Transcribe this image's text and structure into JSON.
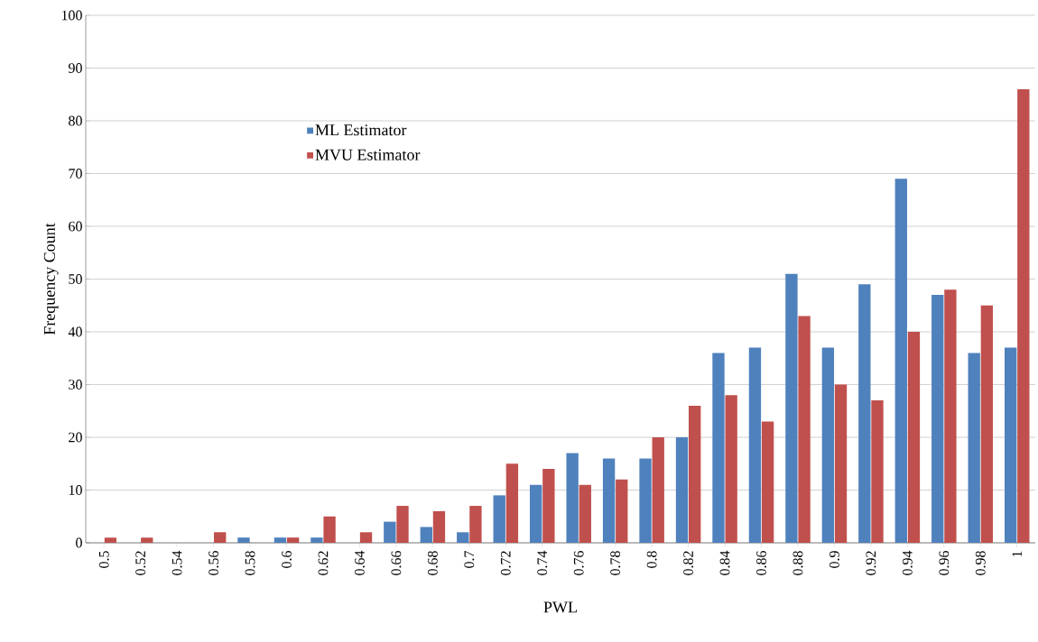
{
  "chart_data": {
    "type": "bar",
    "xlabel": "PWL",
    "ylabel": "Frequency Count",
    "categories": [
      "0.5",
      "0.52",
      "0.54",
      "0.56",
      "0.58",
      "0.6",
      "0.62",
      "0.64",
      "0.66",
      "0.68",
      "0.7",
      "0.72",
      "0.74",
      "0.76",
      "0.78",
      "0.8",
      "0.82",
      "0.84",
      "0.86",
      "0.88",
      "0.9",
      "0.92",
      "0.94",
      "0.96",
      "0.98",
      "1"
    ],
    "series": [
      {
        "name": "ML Estimator",
        "color": "#4f81bd",
        "values": [
          0,
          0,
          0,
          0,
          1,
          1,
          1,
          0,
          4,
          3,
          2,
          9,
          11,
          17,
          16,
          16,
          20,
          36,
          37,
          51,
          37,
          49,
          69,
          47,
          36,
          37
        ]
      },
      {
        "name": "MVU Estimator",
        "color": "#c0504d",
        "values": [
          1,
          1,
          0,
          2,
          0,
          1,
          5,
          2,
          7,
          6,
          7,
          15,
          14,
          11,
          12,
          20,
          26,
          28,
          23,
          43,
          30,
          27,
          40,
          48,
          45,
          86
        ]
      }
    ],
    "ylim": [
      0,
      100
    ],
    "yticks": [
      0,
      10,
      20,
      30,
      40,
      50,
      60,
      70,
      80,
      90,
      100
    ],
    "grid": "y",
    "legend": "top left"
  }
}
